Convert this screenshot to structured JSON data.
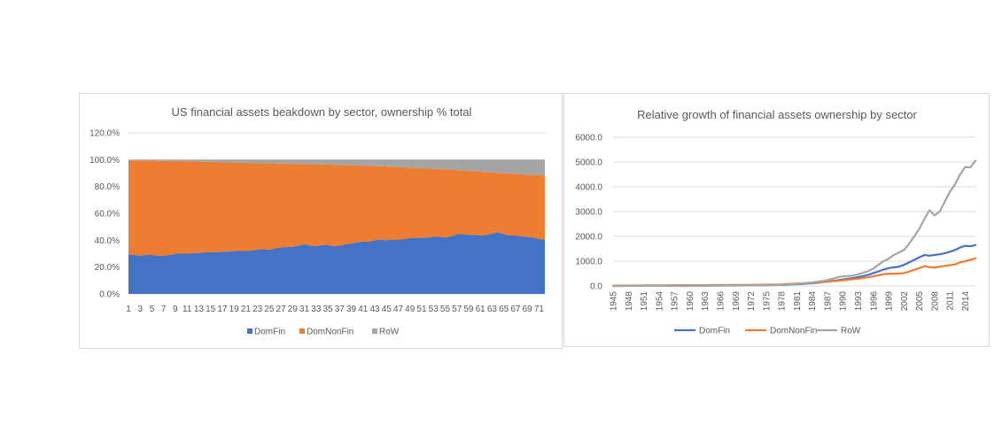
{
  "chart_data": [
    {
      "type": "area",
      "stacked": true,
      "title": "US financial assets beakdown by sector, ownership % total",
      "xlabel": "",
      "ylabel": "",
      "ylim": [
        0,
        120
      ],
      "y_ticks": [
        "0.0%",
        "20.0%",
        "40.0%",
        "60.0%",
        "80.0%",
        "100.0%",
        "120.0%"
      ],
      "x_ticks": [
        "1",
        "3",
        "5",
        "7",
        "9",
        "11",
        "13",
        "15",
        "17",
        "19",
        "21",
        "23",
        "25",
        "27",
        "29",
        "31",
        "33",
        "35",
        "37",
        "39",
        "41",
        "43",
        "45",
        "47",
        "49",
        "51",
        "53",
        "55",
        "57",
        "59",
        "61",
        "63",
        "65",
        "67",
        "69",
        "71"
      ],
      "grid": true,
      "legend_position": "bottom",
      "x": [
        1,
        2,
        3,
        4,
        5,
        6,
        7,
        8,
        9,
        10,
        11,
        12,
        13,
        14,
        15,
        16,
        17,
        18,
        19,
        20,
        21,
        22,
        23,
        24,
        25,
        26,
        27,
        28,
        29,
        30,
        31,
        32,
        33,
        34,
        35,
        36,
        37,
        38,
        39,
        40,
        41,
        42,
        43,
        44,
        45,
        46,
        47,
        48,
        49,
        50,
        51,
        52,
        53,
        54,
        55,
        56,
        57,
        58,
        59,
        60,
        61,
        62,
        63,
        64,
        65,
        66,
        67,
        68,
        69,
        70,
        71,
        72
      ],
      "series": [
        {
          "name": "DomFin",
          "color": "#4472c4",
          "values": [
            29.5,
            29.0,
            28.5,
            29.0,
            29.0,
            28.5,
            28.5,
            29.0,
            30.0,
            30.0,
            30.0,
            30.5,
            30.5,
            31.0,
            31.0,
            31.0,
            31.5,
            31.5,
            32.0,
            32.0,
            32.0,
            32.5,
            33.0,
            33.5,
            33.0,
            34.0,
            34.5,
            35.0,
            35.0,
            36.0,
            37.0,
            36.0,
            35.5,
            36.5,
            36.5,
            35.5,
            36.0,
            37.0,
            37.5,
            38.5,
            39.0,
            39.0,
            40.0,
            40.5,
            40.0,
            40.5,
            40.5,
            41.0,
            41.5,
            41.5,
            42.0,
            42.0,
            42.5,
            42.5,
            42.0,
            43.0,
            44.5,
            44.5,
            44.0,
            44.0,
            43.5,
            44.0,
            45.0,
            46.0,
            44.5,
            43.5,
            43.5,
            43.0,
            42.5,
            42.0,
            41.0,
            40.5
          ]
        },
        {
          "name": "DomNonFin",
          "color": "#ed7d31",
          "values": [
            70.0,
            70.5,
            70.8,
            70.3,
            70.2,
            70.6,
            70.6,
            70.0,
            68.9,
            68.8,
            68.7,
            68.1,
            68.0,
            67.4,
            67.3,
            67.2,
            66.5,
            66.4,
            65.8,
            65.7,
            65.6,
            65.0,
            64.5,
            63.9,
            64.3,
            63.2,
            62.6,
            62.0,
            61.9,
            60.8,
            59.7,
            60.6,
            61.0,
            59.9,
            59.8,
            60.7,
            60.0,
            58.9,
            58.3,
            57.1,
            56.5,
            56.3,
            55.2,
            54.5,
            54.9,
            54.2,
            54.0,
            53.2,
            52.5,
            52.3,
            51.6,
            51.4,
            50.7,
            50.5,
            50.8,
            49.6,
            47.8,
            47.5,
            47.7,
            47.4,
            47.6,
            46.8,
            45.5,
            44.2,
            45.4,
            46.2,
            45.9,
            46.1,
            46.3,
            46.6,
            47.4,
            47.6
          ]
        },
        {
          "name": "RoW",
          "color": "#a5a5a5",
          "values": [
            0.5,
            0.5,
            0.7,
            0.7,
            0.8,
            0.9,
            0.9,
            1.0,
            1.1,
            1.2,
            1.3,
            1.4,
            1.5,
            1.6,
            1.7,
            1.8,
            2.0,
            2.1,
            2.2,
            2.3,
            2.4,
            2.5,
            2.5,
            2.6,
            2.7,
            2.8,
            2.9,
            3.0,
            3.1,
            3.2,
            3.3,
            3.4,
            3.5,
            3.6,
            3.7,
            3.8,
            4.0,
            4.1,
            4.2,
            4.4,
            4.5,
            4.7,
            4.8,
            5.0,
            5.1,
            5.3,
            5.5,
            5.8,
            6.0,
            6.2,
            6.4,
            6.6,
            6.8,
            7.0,
            7.2,
            7.4,
            7.7,
            8.0,
            8.3,
            8.6,
            8.9,
            9.2,
            9.5,
            9.8,
            10.1,
            10.3,
            10.6,
            10.9,
            11.2,
            11.4,
            11.6,
            11.9
          ]
        }
      ]
    },
    {
      "type": "line",
      "title": "Relative growth of financial assets ownership by sector",
      "xlabel": "",
      "ylabel": "",
      "ylim": [
        0,
        6000
      ],
      "y_ticks": [
        "0.0",
        "1000.0",
        "2000.0",
        "3000.0",
        "4000.0",
        "5000.0",
        "6000.0"
      ],
      "x_ticks": [
        "1945",
        "1948",
        "1951",
        "1954",
        "1957",
        "1960",
        "1963",
        "1966",
        "1969",
        "1972",
        "1975",
        "1978",
        "1981",
        "1984",
        "1987",
        "1990",
        "1993",
        "1996",
        "1999",
        "2002",
        "2005",
        "2008",
        "2011",
        "2014"
      ],
      "grid": true,
      "legend_position": "bottom",
      "x": [
        1945,
        1946,
        1947,
        1948,
        1949,
        1950,
        1951,
        1952,
        1953,
        1954,
        1955,
        1956,
        1957,
        1958,
        1959,
        1960,
        1961,
        1962,
        1963,
        1964,
        1965,
        1966,
        1967,
        1968,
        1969,
        1970,
        1971,
        1972,
        1973,
        1974,
        1975,
        1976,
        1977,
        1978,
        1979,
        1980,
        1981,
        1982,
        1983,
        1984,
        1985,
        1986,
        1987,
        1988,
        1989,
        1990,
        1991,
        1992,
        1993,
        1994,
        1995,
        1996,
        1997,
        1998,
        1999,
        2000,
        2001,
        2002,
        2003,
        2004,
        2005,
        2006,
        2007,
        2008,
        2009,
        2010,
        2011,
        2012,
        2013,
        2014,
        2015,
        2016
      ],
      "series": [
        {
          "name": "DomFin",
          "color": "#4472c4",
          "values": [
            1,
            1,
            2,
            2,
            3,
            3,
            4,
            4,
            5,
            5,
            6,
            7,
            7,
            8,
            9,
            10,
            11,
            12,
            13,
            14,
            15,
            16,
            17,
            18,
            19,
            20,
            22,
            24,
            26,
            28,
            30,
            34,
            38,
            42,
            50,
            60,
            70,
            80,
            95,
            110,
            130,
            150,
            175,
            200,
            230,
            260,
            290,
            320,
            360,
            400,
            450,
            520,
            590,
            660,
            720,
            750,
            780,
            850,
            950,
            1050,
            1150,
            1250,
            1220,
            1250,
            1280,
            1320,
            1380,
            1450,
            1550,
            1620,
            1600,
            1650
          ]
        },
        {
          "name": "DomNonFin",
          "color": "#ed7d31",
          "values": [
            10,
            12,
            13,
            15,
            17,
            18,
            20,
            21,
            22,
            24,
            25,
            26,
            27,
            28,
            30,
            31,
            32,
            33,
            34,
            35,
            36,
            37,
            38,
            39,
            40,
            41,
            43,
            45,
            47,
            50,
            52,
            55,
            60,
            65,
            75,
            85,
            95,
            105,
            115,
            130,
            145,
            160,
            175,
            190,
            210,
            230,
            250,
            270,
            295,
            320,
            350,
            390,
            430,
            470,
            490,
            495,
            500,
            520,
            580,
            650,
            720,
            800,
            760,
            740,
            780,
            810,
            840,
            870,
            950,
            1000,
            1050,
            1120
          ]
        },
        {
          "name": "RoW",
          "color": "#a5a5a5",
          "values": [
            1,
            1,
            1,
            2,
            2,
            2,
            3,
            3,
            3,
            4,
            4,
            5,
            5,
            6,
            7,
            8,
            9,
            10,
            11,
            12,
            13,
            14,
            15,
            16,
            17,
            18,
            20,
            22,
            25,
            28,
            30,
            35,
            40,
            45,
            55,
            65,
            80,
            100,
            120,
            140,
            170,
            200,
            240,
            290,
            350,
            390,
            400,
            420,
            470,
            530,
            600,
            700,
            850,
            1000,
            1100,
            1250,
            1350,
            1450,
            1700,
            2000,
            2300,
            2700,
            3050,
            2850,
            3000,
            3400,
            3800,
            4100,
            4500,
            4800,
            4780,
            5050
          ]
        }
      ]
    }
  ]
}
